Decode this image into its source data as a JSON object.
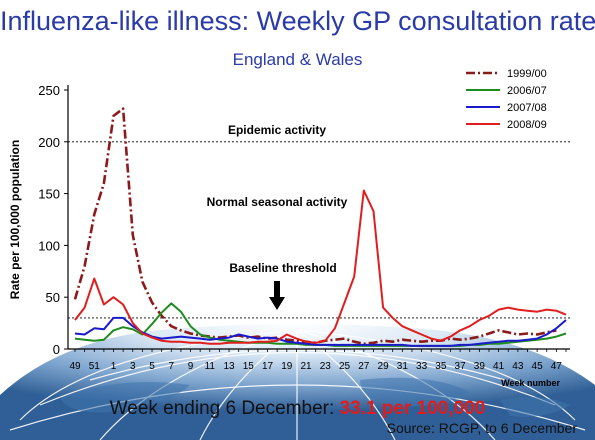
{
  "page": {
    "title": "Influenza-like illness: Weekly GP consultation rate",
    "subtitle": "England & Wales",
    "footer_prefix": "Week ending 6 December: ",
    "footer_value": "33.1 per 100,000",
    "source": "Source: RCGP, to 6 December"
  },
  "colors": {
    "title": "#2a3aa8",
    "highlight": "#e21b1b"
  },
  "chart_data": {
    "type": "line",
    "title": "Influenza-like illness: Weekly GP consultation rate",
    "subtitle": "England & Wales",
    "xlabel": "Week number",
    "ylabel": "Rate per 100,000 population",
    "ylim": [
      0,
      250
    ],
    "yticks": [
      0,
      50,
      100,
      150,
      200,
      250
    ],
    "x": [
      49,
      50,
      51,
      52,
      1,
      2,
      3,
      4,
      5,
      6,
      7,
      8,
      9,
      10,
      11,
      12,
      13,
      14,
      15,
      16,
      17,
      18,
      19,
      20,
      21,
      22,
      23,
      24,
      25,
      26,
      27,
      28,
      29,
      30,
      31,
      32,
      33,
      34,
      35,
      36,
      37,
      38,
      39,
      40,
      41,
      42,
      43,
      44,
      45,
      46,
      47,
      48
    ],
    "xticks": [
      "49",
      "51",
      "1",
      "3",
      "5",
      "7",
      "9",
      "11",
      "13",
      "15",
      "17",
      "19",
      "21",
      "23",
      "25",
      "27",
      "29",
      "31",
      "33",
      "35",
      "37",
      "39",
      "41",
      "43",
      "45",
      "47"
    ],
    "grid": false,
    "legend": "top-right",
    "series": [
      {
        "name": "1999/00",
        "color": "#8b1a1a",
        "style": "dashdot",
        "values": [
          48,
          80,
          130,
          160,
          225,
          232,
          110,
          65,
          45,
          32,
          22,
          18,
          15,
          13,
          12,
          11,
          12,
          13,
          11,
          12,
          10,
          11,
          9,
          8,
          7,
          6,
          8,
          9,
          10,
          7,
          5,
          6,
          8,
          7,
          9,
          8,
          7,
          8,
          8,
          10,
          9,
          10,
          12,
          15,
          18,
          16,
          14,
          15,
          14,
          16,
          18,
          null
        ]
      },
      {
        "name": "2006/07",
        "color": "#1e8c1e",
        "style": "solid",
        "values": [
          10,
          9,
          8,
          9,
          18,
          21,
          19,
          14,
          24,
          35,
          44,
          36,
          22,
          14,
          11,
          9,
          8,
          7,
          6,
          6,
          6,
          5,
          5,
          5,
          4,
          4,
          4,
          3,
          3,
          3,
          3,
          3,
          3,
          3,
          3,
          3,
          3,
          3,
          3,
          3,
          3,
          4,
          4,
          5,
          5,
          6,
          7,
          8,
          9,
          10,
          12,
          15
        ]
      },
      {
        "name": "2007/08",
        "color": "#1a1acc",
        "style": "solid",
        "values": [
          15,
          14,
          20,
          19,
          30,
          30,
          22,
          16,
          12,
          10,
          11,
          12,
          11,
          10,
          9,
          10,
          11,
          14,
          12,
          10,
          11,
          10,
          7,
          6,
          5,
          4,
          4,
          4,
          4,
          4,
          4,
          4,
          4,
          4,
          4,
          3,
          3,
          3,
          3,
          3,
          4,
          4,
          5,
          6,
          7,
          8,
          8,
          9,
          10,
          14,
          20,
          28
        ]
      },
      {
        "name": "2008/09",
        "color": "#e01e1e",
        "style": "solid",
        "values": [
          28,
          40,
          68,
          43,
          50,
          43,
          25,
          15,
          11,
          8,
          7,
          7,
          6,
          6,
          5,
          5,
          6,
          6,
          6,
          7,
          7,
          8,
          14,
          10,
          7,
          6,
          8,
          20,
          45,
          70,
          153,
          133,
          40,
          30,
          22,
          18,
          14,
          10,
          8,
          12,
          18,
          22,
          28,
          32,
          38,
          40,
          38,
          37,
          36,
          38,
          37,
          33.1
        ]
      }
    ],
    "reference_lines": [
      {
        "value": 200,
        "label": "Epidemic activity"
      },
      {
        "value": 30,
        "label": "Baseline threshold"
      }
    ],
    "annotations": [
      "Normal seasonal activity"
    ]
  }
}
